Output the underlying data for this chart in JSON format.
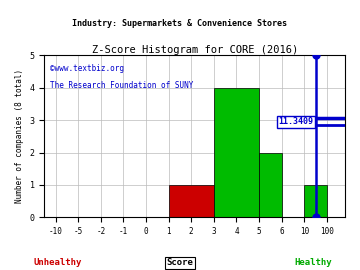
{
  "title": "Z-Score Histogram for CORE (2016)",
  "industry": "Industry: Supermarkets & Convenience Stores",
  "watermark1": "©www.textbiz.org",
  "watermark2": "The Research Foundation of SUNY",
  "xlabel_score": "Score",
  "xlabel_unhealthy": "Unhealthy",
  "xlabel_healthy": "Healthy",
  "ylabel": "Number of companies (8 total)",
  "xtick_labels": [
    "-10",
    "-5",
    "-2",
    "-1",
    "0",
    "1",
    "2",
    "3",
    "4",
    "5",
    "6",
    "10",
    "100"
  ],
  "xtick_positions": [
    0,
    1,
    2,
    3,
    4,
    5,
    6,
    7,
    8,
    9,
    10,
    11,
    12
  ],
  "bins": [
    {
      "x_left": 5,
      "x_right": 7,
      "height": 1,
      "color": "#cc0000"
    },
    {
      "x_left": 7,
      "x_right": 9,
      "height": 4,
      "color": "#00bb00"
    },
    {
      "x_left": 9,
      "x_right": 10,
      "height": 2,
      "color": "#00bb00"
    },
    {
      "x_left": 11,
      "x_right": 12,
      "height": 1,
      "color": "#00bb00"
    }
  ],
  "ylim": [
    0,
    5
  ],
  "yticks": [
    0,
    1,
    2,
    3,
    4,
    5
  ],
  "score_line_x": 11.5,
  "score_label": "11.3409",
  "score_line_color": "#0000cc",
  "score_crossbar_y": 3.0,
  "background_color": "#ffffff",
  "grid_color": "#bbbbbb",
  "title_color": "#000000",
  "watermark1_color": "#0000cc",
  "watermark2_color": "#0000cc",
  "unhealthy_color": "#cc0000",
  "healthy_color": "#00aa00"
}
